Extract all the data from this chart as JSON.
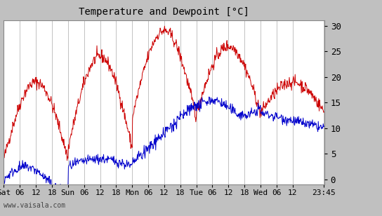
{
  "title": "Temperature and Dewpoint [°C]",
  "bg_color": "#c0c0c0",
  "plot_bg_color": "#ffffff",
  "grid_color": "#aaaaaa",
  "ylim": [
    -1,
    31
  ],
  "yticks": [
    0,
    5,
    10,
    15,
    20,
    25,
    30
  ],
  "xlabel_ticks": [
    "Sat",
    "06",
    "12",
    "18",
    "Sun",
    "06",
    "12",
    "18",
    "Mon",
    "06",
    "12",
    "18",
    "Tue",
    "06",
    "12",
    "18",
    "Wed",
    "06",
    "12",
    "23:45"
  ],
  "tick_positions": [
    0.0,
    0.25,
    0.5,
    0.75,
    1.0,
    1.25,
    1.5,
    1.75,
    2.0,
    2.25,
    2.5,
    2.75,
    3.0,
    3.25,
    3.5,
    3.75,
    4.0,
    4.25,
    4.5,
    4.99
  ],
  "watermark": "www.vaisala.com",
  "red_color": "#cc0000",
  "blue_color": "#0000cc",
  "xlim": [
    0.0,
    5.0
  ],
  "title_fontsize": 10,
  "tick_fontsize": 8,
  "ytick_fontsize": 9,
  "watermark_fontsize": 7,
  "linewidth": 0.7
}
